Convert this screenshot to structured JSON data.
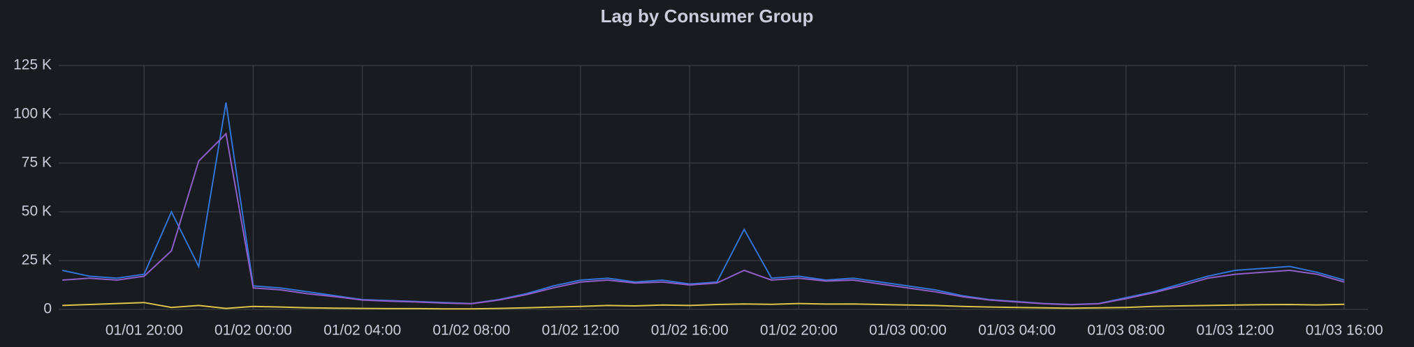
{
  "chart_data": {
    "type": "line",
    "title": "Lag by Consumer Group",
    "x": [
      "01/01 17:00",
      "01/01 18:00",
      "01/01 19:00",
      "01/01 20:00",
      "01/01 21:00",
      "01/01 22:00",
      "01/01 23:00",
      "01/02 00:00",
      "01/02 01:00",
      "01/02 02:00",
      "01/02 03:00",
      "01/02 04:00",
      "01/02 05:00",
      "01/02 06:00",
      "01/02 07:00",
      "01/02 08:00",
      "01/02 09:00",
      "01/02 10:00",
      "01/02 11:00",
      "01/02 12:00",
      "01/02 13:00",
      "01/02 14:00",
      "01/02 15:00",
      "01/02 16:00",
      "01/02 17:00",
      "01/02 18:00",
      "01/02 19:00",
      "01/02 20:00",
      "01/02 21:00",
      "01/02 22:00",
      "01/02 23:00",
      "01/03 00:00",
      "01/03 01:00",
      "01/03 02:00",
      "01/03 03:00",
      "01/03 04:00",
      "01/03 05:00",
      "01/03 06:00",
      "01/03 07:00",
      "01/03 08:00",
      "01/03 09:00",
      "01/03 10:00",
      "01/03 11:00",
      "01/03 12:00",
      "01/03 13:00",
      "01/03 14:00",
      "01/03 15:00",
      "01/03 16:00"
    ],
    "series": [
      {
        "color": "#3274d9",
        "values": [
          20000,
          17000,
          16000,
          18000,
          50000,
          22000,
          106000,
          12000,
          11000,
          9000,
          7000,
          5000,
          4500,
          4000,
          3500,
          3000,
          5000,
          8000,
          12000,
          15000,
          16000,
          14000,
          15000,
          13000,
          14000,
          41000,
          16000,
          17000,
          15000,
          16000,
          14000,
          12000,
          10000,
          7000,
          5000,
          4000,
          3000,
          2500,
          3000,
          6000,
          9000,
          13000,
          17000,
          20000,
          21000,
          22000,
          19000,
          15000
        ]
      },
      {
        "color": "#8f5ec9",
        "values": [
          15000,
          16000,
          15000,
          17000,
          30000,
          76000,
          90000,
          11000,
          10000,
          8000,
          6500,
          4800,
          4200,
          3800,
          3200,
          2900,
          4800,
          7500,
          11000,
          14000,
          15000,
          13500,
          14000,
          12500,
          13500,
          20000,
          15000,
          16000,
          14500,
          15000,
          13000,
          11000,
          9000,
          6500,
          4800,
          3800,
          2900,
          2400,
          2900,
          5500,
          8500,
          12000,
          16000,
          18000,
          19000,
          20000,
          18000,
          14000
        ]
      },
      {
        "color": "#e0c34a",
        "values": [
          2000,
          2500,
          3000,
          3500,
          1000,
          2000,
          500,
          1500,
          1200,
          800,
          600,
          500,
          400,
          400,
          300,
          300,
          500,
          800,
          1200,
          1500,
          2000,
          1800,
          2200,
          2000,
          2500,
          2800,
          2600,
          3000,
          2700,
          2800,
          2500,
          2200,
          2000,
          1500,
          1200,
          1000,
          800,
          600,
          800,
          1000,
          1500,
          1800,
          2000,
          2200,
          2400,
          2500,
          2300,
          2600
        ]
      }
    ],
    "xlim": [
      "01/01 16:52",
      "01/03 16:52"
    ],
    "xticks": [
      "01/01 20:00",
      "01/02 00:00",
      "01/02 04:00",
      "01/02 08:00",
      "01/02 12:00",
      "01/02 16:00",
      "01/02 20:00",
      "01/03 00:00",
      "01/03 04:00",
      "01/03 08:00",
      "01/03 12:00",
      "01/03 16:00"
    ],
    "ylim": [
      0,
      125000
    ],
    "yticks": [
      0,
      {
        "value": 25000,
        "label": "25 K"
      },
      {
        "value": 50000,
        "label": "50 K"
      },
      {
        "value": 75000,
        "label": "75 K"
      },
      {
        "value": 100000,
        "label": "100 K"
      },
      {
        "value": 125000,
        "label": "125 K"
      }
    ],
    "grid": true
  }
}
